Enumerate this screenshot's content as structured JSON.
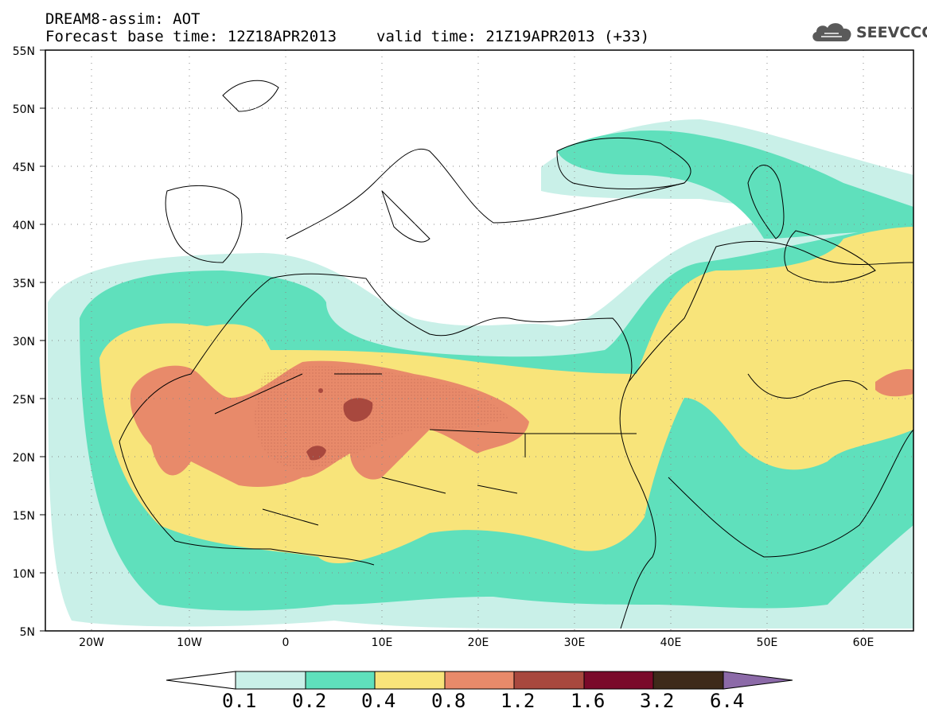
{
  "header": {
    "title_line": "DREAM8-assim: AOT",
    "base_time": "Forecast base time: 12Z18APR2013",
    "valid_time": "valid time: 21Z19APR2013 (+33)"
  },
  "logo": {
    "text": "SEEVCCC",
    "icon": "cloud-icon"
  },
  "map": {
    "projection": "cylindrical lat-lon",
    "lon_range": [
      -25,
      65
    ],
    "lat_range": [
      5,
      55
    ],
    "lat_ticks": [
      "55N",
      "50N",
      "45N",
      "40N",
      "35N",
      "30N",
      "25N",
      "20N",
      "15N",
      "10N",
      "5N"
    ],
    "lon_ticks": [
      "20W",
      "10W",
      "0",
      "10E",
      "20E",
      "30E",
      "40E",
      "50E",
      "60E"
    ],
    "grid": "dotted",
    "field": "Aerosol optical thickness (dust)"
  },
  "colorbar": {
    "levels": [
      "0.1",
      "0.2",
      "0.4",
      "0.8",
      "1.2",
      "1.6",
      "3.2",
      "6.4"
    ],
    "colors": [
      "#ffffff",
      "#c9f0e8",
      "#5fe0bc",
      "#f8e47a",
      "#e88a6a",
      "#a8483e",
      "#7a0a2a",
      "#3e2a1a",
      "#8c6aa8"
    ]
  }
}
